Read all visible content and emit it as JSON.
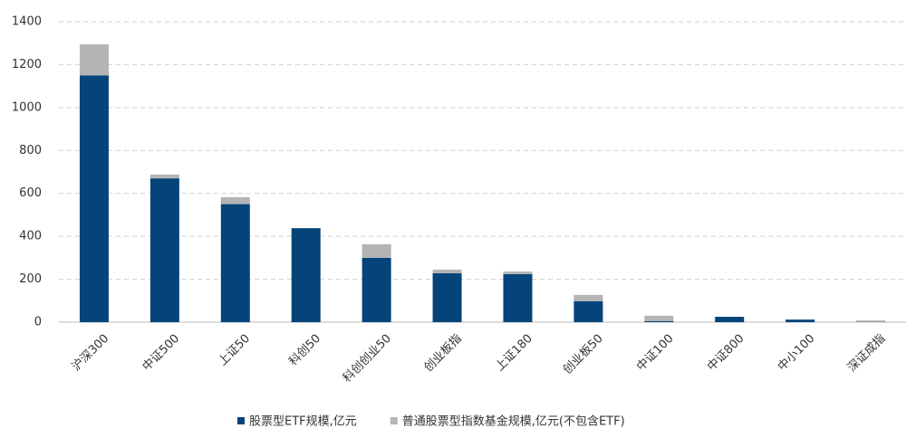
{
  "chart_data": {
    "type": "stacked_bar",
    "categories": [
      "沪深300",
      "中证500",
      "上证50",
      "科创50",
      "科创创业50",
      "创业板指",
      "上证180",
      "创业板50",
      "中证100",
      "中证800",
      "中小100",
      "深证成指"
    ],
    "series": [
      {
        "name": "股票型ETF规模,亿元",
        "color": "#05447a",
        "values": [
          1150,
          670,
          550,
          438,
          300,
          228,
          224,
          97,
          5,
          25,
          12,
          1
        ]
      },
      {
        "name": "普通股票型指数基金规模,亿元(不包含ETF)",
        "color": "#b4b4b4",
        "values": [
          145,
          18,
          32,
          0,
          63,
          17,
          12,
          30,
          25,
          0,
          0,
          7
        ]
      }
    ],
    "ylim": [
      0,
      1400
    ],
    "yticks": [
      0,
      200,
      400,
      600,
      800,
      1000,
      1200,
      1400
    ],
    "grid": true,
    "legend": "bottom"
  }
}
